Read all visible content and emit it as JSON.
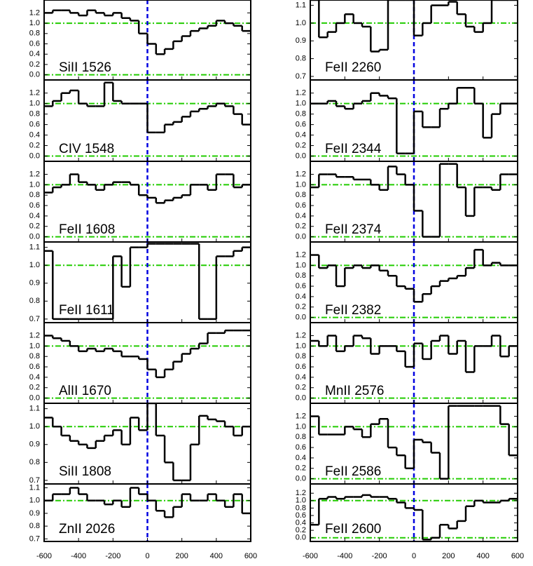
{
  "chart_data": {
    "type": "step-stack",
    "bins": [
      -600,
      -550,
      -500,
      -450,
      -400,
      -350,
      -300,
      -250,
      -200,
      -150,
      -100,
      -50,
      0,
      50,
      100,
      150,
      200,
      250,
      300,
      350,
      400,
      450,
      500,
      550,
      600
    ],
    "xlim": [
      -600,
      600
    ],
    "xticks": [
      -600,
      -400,
      -200,
      0,
      200,
      400,
      600
    ],
    "vline": 0,
    "hlines": [
      0,
      1
    ],
    "line_color": "#000000",
    "vline_color": "#0000e0",
    "hline_color": "#22cc00",
    "panels": [
      {
        "label": "SiII 1526",
        "ylim": [
          -0.1,
          1.45
        ],
        "yticks": [
          {
            "value": 0,
            "label": "0.0"
          },
          0.2,
          0.4,
          0.6,
          0.8,
          {
            "value": 1,
            "label": "1.0"
          },
          1.2
        ],
        "values": [
          1.2,
          1.25,
          1.25,
          1.2,
          1.15,
          1.25,
          1.2,
          1.15,
          1.2,
          1.1,
          1.05,
          0.8,
          0.6,
          0.4,
          0.5,
          0.65,
          0.75,
          0.85,
          0.9,
          0.95,
          1.05,
          1.0,
          0.95,
          0.85
        ]
      },
      {
        "label": "CIV 1548",
        "ylim": [
          -0.1,
          1.45
        ],
        "yticks": [
          {
            "value": 0,
            "label": "0.0"
          },
          0.2,
          0.4,
          0.6,
          0.8,
          {
            "value": 1,
            "label": "1.0"
          },
          1.2
        ],
        "values": [
          0.95,
          1.05,
          1.2,
          1.25,
          1.0,
          0.95,
          0.95,
          1.4,
          1.05,
          1.0,
          1.0,
          1.0,
          0.45,
          0.45,
          0.6,
          0.65,
          0.75,
          0.85,
          0.9,
          0.95,
          1.0,
          0.95,
          0.8,
          0.6
        ]
      },
      {
        "label": "FeII 1608",
        "ylim": [
          -0.1,
          1.45
        ],
        "yticks": [
          {
            "value": 0,
            "label": "0.0"
          },
          0.2,
          0.4,
          0.6,
          0.8,
          {
            "value": 1,
            "label": "1.0"
          },
          1.2
        ],
        "values": [
          0.85,
          0.95,
          1.0,
          1.2,
          1.05,
          1.0,
          0.9,
          1.0,
          1.05,
          1.05,
          1.0,
          0.8,
          0.75,
          0.65,
          0.7,
          0.75,
          0.8,
          1.0,
          1.0,
          0.9,
          1.2,
          1.2,
          0.95,
          1.0
        ]
      },
      {
        "label": "FeII 1611",
        "ylim": [
          0.68,
          1.13
        ],
        "yticks": [
          0.7,
          0.8,
          0.9,
          {
            "value": 1,
            "label": "1.0"
          },
          1.1
        ],
        "values": [
          1.08,
          0.7,
          0.7,
          0.7,
          0.7,
          0.7,
          0.7,
          0.7,
          1.05,
          0.88,
          1.1,
          1.1,
          1.12,
          1.12,
          1.12,
          1.12,
          1.12,
          1.12,
          0.7,
          0.7,
          1.05,
          1.05,
          1.08,
          1.1
        ]
      },
      {
        "label": "AlII 1670",
        "ylim": [
          -0.1,
          1.45
        ],
        "yticks": [
          {
            "value": 0,
            "label": "0.0"
          },
          0.2,
          0.4,
          0.6,
          0.8,
          {
            "value": 1,
            "label": "1.0"
          },
          1.2
        ],
        "values": [
          1.2,
          1.15,
          1.1,
          1.0,
          0.9,
          0.95,
          0.9,
          0.95,
          0.9,
          0.8,
          0.8,
          0.75,
          0.55,
          0.4,
          0.55,
          0.7,
          0.85,
          0.95,
          1.05,
          1.25,
          1.25,
          1.3,
          1.3,
          1.3
        ]
      },
      {
        "label": "SiII 1808",
        "ylim": [
          0.68,
          1.13
        ],
        "yticks": [
          0.7,
          0.8,
          0.9,
          {
            "value": 1,
            "label": "1.0"
          },
          1.1
        ],
        "values": [
          1.05,
          1.0,
          0.95,
          0.92,
          0.9,
          0.88,
          0.92,
          0.95,
          0.98,
          0.9,
          1.05,
          0.98,
          1.13,
          0.95,
          0.8,
          0.7,
          0.7,
          0.9,
          1.06,
          1.04,
          1.03,
          1.0,
          0.95,
          1.0
        ]
      },
      {
        "label": "ZnII 2026",
        "ylim": [
          0.68,
          1.13
        ],
        "yticks": [
          0.7,
          0.8,
          0.9,
          {
            "value": 1,
            "label": "1.0"
          },
          1.1
        ],
        "values": [
          1.0,
          1.05,
          1.05,
          1.1,
          1.05,
          1.0,
          1.0,
          0.97,
          1.0,
          0.95,
          1.1,
          1.05,
          1.0,
          0.92,
          0.87,
          0.95,
          1.05,
          1.0,
          1.0,
          1.05,
          1.0,
          0.95,
          1.05,
          0.9
        ]
      },
      {
        "label": "FeII 2260",
        "ylim": [
          0.68,
          1.13
        ],
        "yticks": [
          0.7,
          0.8,
          0.9,
          {
            "value": 1,
            "label": "1.0"
          },
          1.1
        ],
        "values": [
          1.13,
          0.92,
          0.95,
          1.0,
          1.05,
          1.0,
          0.98,
          0.84,
          0.85,
          1.13,
          1.13,
          1.13,
          0.93,
          1.0,
          1.1,
          1.1,
          1.12,
          1.05,
          0.98,
          0.95,
          1.0,
          1.13,
          1.13,
          1.13
        ]
      },
      {
        "label": "FeII 2344",
        "ylim": [
          -0.1,
          1.45
        ],
        "yticks": [
          {
            "value": 0,
            "label": "0.0"
          },
          0.2,
          0.4,
          0.6,
          0.8,
          {
            "value": 1,
            "label": "1.0"
          },
          1.2
        ],
        "values": [
          1.0,
          1.0,
          1.05,
          0.95,
          0.9,
          1.0,
          1.05,
          1.2,
          1.15,
          1.1,
          0.05,
          0.05,
          0.85,
          0.55,
          0.55,
          0.9,
          1.0,
          1.3,
          1.3,
          1.0,
          0.35,
          0.8,
          1.0,
          1.0
        ]
      },
      {
        "label": "FeII 2374",
        "ylim": [
          -0.1,
          1.45
        ],
        "yticks": [
          {
            "value": 0,
            "label": "0.0"
          },
          0.2,
          0.4,
          0.6,
          0.8,
          {
            "value": 1,
            "label": "1.0"
          },
          1.2
        ],
        "values": [
          0.95,
          1.2,
          1.2,
          1.15,
          1.15,
          1.1,
          1.1,
          1.0,
          0.9,
          1.35,
          1.2,
          1.0,
          0.5,
          0.0,
          0.0,
          1.4,
          1.4,
          0.95,
          0.4,
          0.95,
          0.95,
          0.9,
          1.2,
          1.2
        ]
      },
      {
        "label": "FeII 2382",
        "ylim": [
          -0.1,
          1.45
        ],
        "yticks": [
          {
            "value": 0,
            "label": "0.0"
          },
          0.2,
          0.4,
          0.6,
          0.8,
          {
            "value": 1,
            "label": "1.0"
          },
          1.2
        ],
        "values": [
          1.2,
          0.95,
          1.0,
          0.6,
          0.95,
          1.0,
          0.95,
          1.0,
          0.9,
          0.8,
          0.6,
          0.55,
          0.3,
          0.45,
          0.6,
          0.7,
          0.75,
          0.8,
          0.95,
          1.3,
          1.0,
          1.05,
          1.0,
          1.0
        ]
      },
      {
        "label": "MnII 2576",
        "ylim": [
          -0.1,
          1.45
        ],
        "yticks": [
          {
            "value": 0,
            "label": "0.0"
          },
          0.2,
          0.4,
          0.6,
          0.8,
          {
            "value": 1,
            "label": "1.0"
          },
          1.2
        ],
        "values": [
          1.1,
          1.0,
          1.2,
          0.9,
          1.0,
          1.2,
          1.15,
          0.85,
          1.0,
          1.0,
          0.9,
          0.6,
          1.05,
          0.75,
          1.1,
          1.2,
          0.85,
          1.1,
          0.5,
          1.0,
          1.0,
          1.2,
          0.8,
          1.0
        ]
      },
      {
        "label": "FeII 2586",
        "ylim": [
          -0.1,
          1.45
        ],
        "yticks": [
          {
            "value": 0,
            "label": "0.0"
          },
          0.2,
          0.4,
          0.6,
          0.8,
          {
            "value": 1,
            "label": "1.0"
          },
          1.2
        ],
        "values": [
          1.2,
          0.85,
          0.85,
          0.85,
          1.0,
          0.95,
          0.8,
          1.05,
          1.15,
          0.6,
          0.45,
          0.2,
          0.75,
          0.7,
          0.5,
          0.0,
          1.4,
          1.4,
          1.4,
          1.4,
          1.4,
          1.4,
          1.05,
          0.45
        ]
      },
      {
        "label": "FeII 2600",
        "ylim": [
          -0.1,
          1.45
        ],
        "yticks": [
          {
            "value": 0,
            "label": "0.0"
          },
          0.2,
          0.4,
          0.6,
          0.8,
          {
            "value": 1,
            "label": "1.0"
          },
          1.2
        ],
        "values": [
          0.35,
          1.05,
          1.1,
          1.05,
          1.1,
          1.1,
          1.15,
          1.1,
          1.1,
          1.05,
          0.95,
          0.8,
          0.75,
          -0.05,
          0.0,
          0.35,
          0.25,
          0.45,
          0.85,
          1.0,
          0.95,
          0.95,
          1.0,
          1.05
        ]
      }
    ]
  }
}
